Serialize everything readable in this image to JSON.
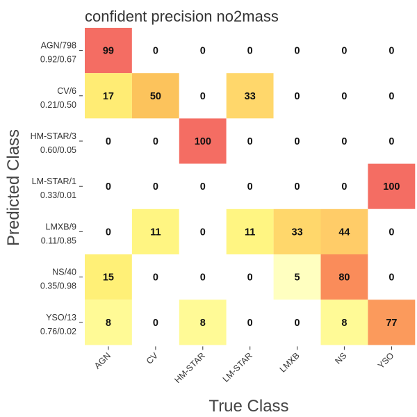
{
  "chart_data": {
    "type": "heatmap",
    "title": "confident precision no2mass",
    "xlabel": "True Class",
    "ylabel": "Predicted Class",
    "columns": [
      "AGN",
      "CV",
      "HM-STAR",
      "LM-STAR",
      "LMXB",
      "NS",
      "YSO"
    ],
    "rows": [
      {
        "name": "AGN/798",
        "stats": "0.92/0.67"
      },
      {
        "name": "CV/6",
        "stats": "0.21/0.50"
      },
      {
        "name": "HM-STAR/3",
        "stats": "0.60/0.05"
      },
      {
        "name": "LM-STAR/1",
        "stats": "0.33/0.01"
      },
      {
        "name": "LMXB/9",
        "stats": "0.11/0.85"
      },
      {
        "name": "NS/40",
        "stats": "0.35/0.98"
      },
      {
        "name": "YSO/13",
        "stats": "0.76/0.02"
      }
    ],
    "values": [
      [
        99,
        0,
        0,
        0,
        0,
        0,
        0
      ],
      [
        17,
        50,
        0,
        33,
        0,
        0,
        0
      ],
      [
        0,
        0,
        100,
        0,
        0,
        0,
        0
      ],
      [
        0,
        0,
        0,
        0,
        0,
        0,
        100
      ],
      [
        0,
        11,
        0,
        11,
        33,
        44,
        0
      ],
      [
        15,
        0,
        0,
        0,
        5,
        80,
        0
      ],
      [
        8,
        0,
        8,
        0,
        0,
        8,
        77
      ]
    ],
    "colorscale": {
      "min": 0,
      "max": 100,
      "zero_color": "#ffffff",
      "stops": [
        {
          "value": 5,
          "color": "#ffffc0"
        },
        {
          "value": 8,
          "color": "#fffa96"
        },
        {
          "value": 11,
          "color": "#fff582"
        },
        {
          "value": 15,
          "color": "#fff077"
        },
        {
          "value": 17,
          "color": "#ffec74"
        },
        {
          "value": 33,
          "color": "#ffd76b"
        },
        {
          "value": 44,
          "color": "#ffcc68"
        },
        {
          "value": 50,
          "color": "#fcc35c"
        },
        {
          "value": 77,
          "color": "#fb9a5c"
        },
        {
          "value": 80,
          "color": "#fa8c5a"
        },
        {
          "value": 99,
          "color": "#f46d63"
        },
        {
          "value": 100,
          "color": "#f46d63"
        }
      ]
    },
    "grid": false,
    "legend": "none"
  }
}
